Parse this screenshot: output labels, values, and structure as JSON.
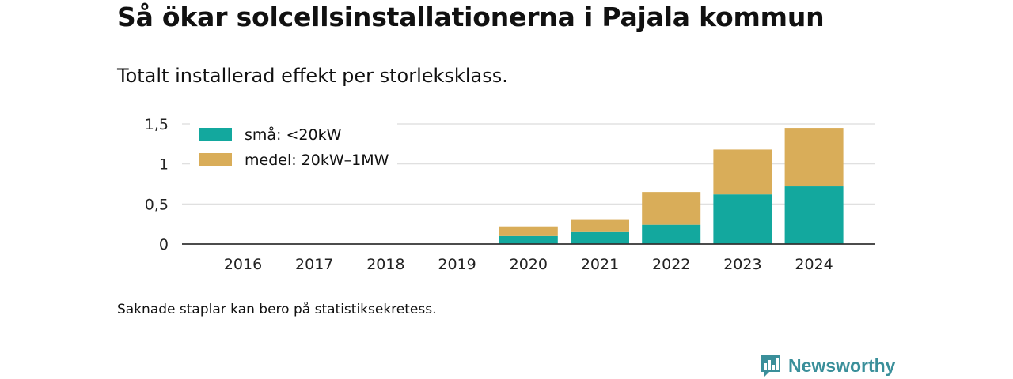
{
  "header": {
    "title": "Så ökar solcellsinstallationerna i Pajala kommun",
    "subtitle": "Totalt installerad effekt per storleksklass."
  },
  "footnote": "Saknade staplar kan bero på statistiksekretess.",
  "brand": {
    "name": "Newsworthy",
    "icon": "newsworthy-logo-icon",
    "color": "#3a8f9a"
  },
  "chart_data": {
    "type": "bar",
    "stacked": true,
    "categories": [
      "2016",
      "2017",
      "2018",
      "2019",
      "2020",
      "2021",
      "2022",
      "2023",
      "2024"
    ],
    "series": [
      {
        "name": "små: <20kW",
        "color": "#13a89e",
        "values": [
          0,
          0,
          0,
          0,
          0.1,
          0.15,
          0.24,
          0.62,
          0.72
        ]
      },
      {
        "name": "medel: 20kW–1MW",
        "color": "#d9ad59",
        "values": [
          0,
          0,
          0,
          0,
          0.12,
          0.16,
          0.41,
          0.56,
          0.73
        ]
      }
    ],
    "ylim": [
      0,
      1.5
    ],
    "yticks": [
      0,
      0.5,
      1,
      1.5
    ],
    "ytick_labels": [
      "0",
      "0,5",
      "1",
      "1,5"
    ],
    "grid": true,
    "legend_position": "top-left"
  }
}
